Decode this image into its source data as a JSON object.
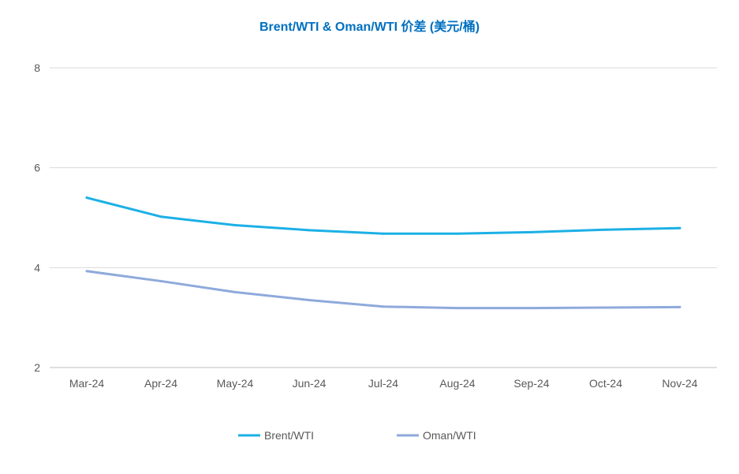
{
  "chart_data": {
    "type": "line",
    "title": "Brent/WTI & Oman/WTI 价差 (美元/桶)",
    "categories": [
      "Mar-24",
      "Apr-24",
      "May-24",
      "Jun-24",
      "Jul-24",
      "Aug-24",
      "Sep-24",
      "Oct-24",
      "Nov-24"
    ],
    "ylim": [
      2,
      8
    ],
    "yticks": [
      2,
      4,
      6,
      8
    ],
    "grid": true,
    "legend_position": "bottom",
    "series": [
      {
        "name": "Brent/WTI",
        "color": "#1cb0e6",
        "values": [
          5.4,
          5.02,
          4.85,
          4.75,
          4.68,
          4.68,
          4.71,
          4.76,
          4.79
        ]
      },
      {
        "name": "Oman/WTI",
        "color": "#8eaadb",
        "values": [
          3.93,
          3.73,
          3.51,
          3.35,
          3.22,
          3.19,
          3.19,
          3.2,
          3.21
        ]
      }
    ]
  }
}
